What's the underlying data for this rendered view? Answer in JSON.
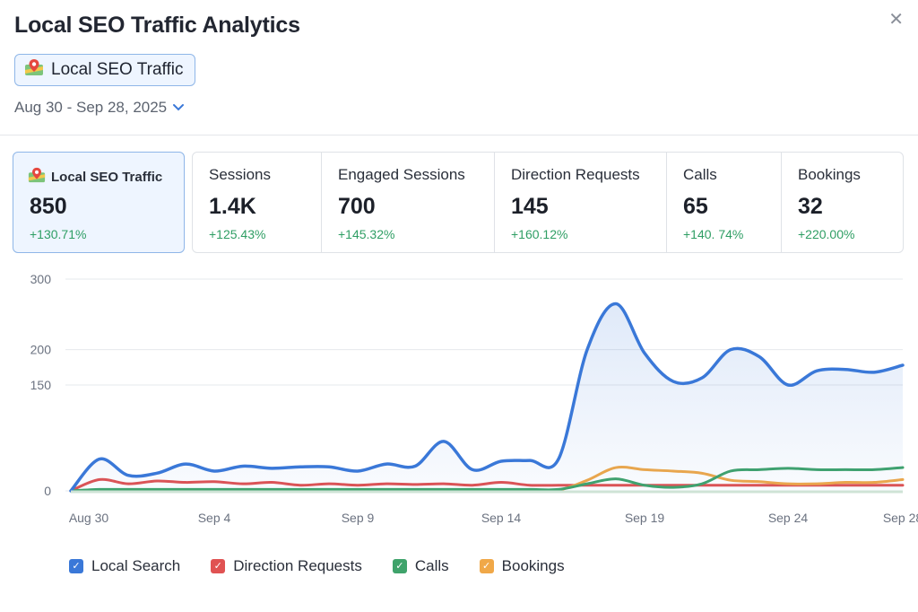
{
  "header": {
    "title": "Local SEO Traffic Analytics",
    "close_icon": "close-icon",
    "chip_label": "Local SEO Traffic",
    "chip_icon": "map-pin-icon",
    "date_range": "Aug 30 - Sep 28, 2025",
    "date_icon": "chevron-down-icon"
  },
  "kpis": [
    {
      "label": "Local SEO Traffic",
      "value": "850",
      "change": "+130.71%"
    },
    {
      "label": "Sessions",
      "value": "1.4K",
      "change": "+125.43%"
    },
    {
      "label": "Engaged Sessions",
      "value": "700",
      "change": "+145.32%"
    },
    {
      "label": "Direction Requests",
      "value": "145",
      "change": "+160.12%"
    },
    {
      "label": "Calls",
      "value": "65",
      "change": "+140. 74%"
    },
    {
      "label": "Bookings",
      "value": "32",
      "change": "+220.00%"
    }
  ],
  "colors": {
    "local_search": "#3a78d8",
    "direction_requests": "#e05252",
    "calls": "#3fa36b",
    "bookings": "#f0a848",
    "positive_change": "#2f9e64",
    "accent": "#8fb6e8"
  },
  "chart_data": {
    "type": "line",
    "x": [
      "Aug 30",
      "Aug 31",
      "Sep 1",
      "Sep 2",
      "Sep 3",
      "Sep 4",
      "Sep 5",
      "Sep 6",
      "Sep 7",
      "Sep 8",
      "Sep 9",
      "Sep 10",
      "Sep 11",
      "Sep 12",
      "Sep 13",
      "Sep 14",
      "Sep 15",
      "Sep 16",
      "Sep 17",
      "Sep 18",
      "Sep 19",
      "Sep 20",
      "Sep 21",
      "Sep 22",
      "Sep 23",
      "Sep 24",
      "Sep 25",
      "Sep 26",
      "Sep 27",
      "Sep 28"
    ],
    "x_tick_labels": [
      "Aug 30",
      "Sep 4",
      "Sep 9",
      "Sep 14",
      "Sep 19",
      "Sep 24",
      "Sep 28"
    ],
    "x_tick_indices": [
      0,
      5,
      10,
      15,
      20,
      25,
      29
    ],
    "y_ticks": [
      0,
      150,
      200,
      300
    ],
    "ylim": [
      0,
      300
    ],
    "series": [
      {
        "name": "Local Search",
        "color": "#3a78d8",
        "filled": true,
        "values": [
          0,
          45,
          22,
          25,
          38,
          28,
          35,
          32,
          34,
          34,
          28,
          38,
          35,
          70,
          30,
          42,
          43,
          45,
          200,
          265,
          195,
          155,
          160,
          200,
          190,
          150,
          170,
          172,
          168,
          178
        ]
      },
      {
        "name": "Direction Requests",
        "color": "#e05252",
        "values": [
          0,
          16,
          10,
          14,
          12,
          13,
          10,
          12,
          8,
          10,
          8,
          10,
          9,
          10,
          8,
          12,
          8,
          8,
          8,
          8,
          8,
          8,
          8,
          8,
          8,
          8,
          8,
          8,
          8,
          8
        ]
      },
      {
        "name": "Calls",
        "color": "#3fa36b",
        "values": [
          0,
          2,
          2,
          2,
          2,
          2,
          2,
          2,
          2,
          2,
          2,
          2,
          2,
          2,
          2,
          2,
          2,
          2,
          10,
          17,
          8,
          5,
          10,
          28,
          30,
          32,
          30,
          30,
          30,
          33
        ]
      },
      {
        "name": "Bookings",
        "color": "#f0a848",
        "values": [
          0,
          1,
          1,
          1,
          1,
          1,
          1,
          1,
          1,
          1,
          1,
          1,
          1,
          1,
          1,
          1,
          1,
          1,
          15,
          33,
          30,
          28,
          25,
          15,
          13,
          10,
          10,
          12,
          12,
          16
        ]
      }
    ],
    "grid": true,
    "legend_position": "bottom-left"
  }
}
